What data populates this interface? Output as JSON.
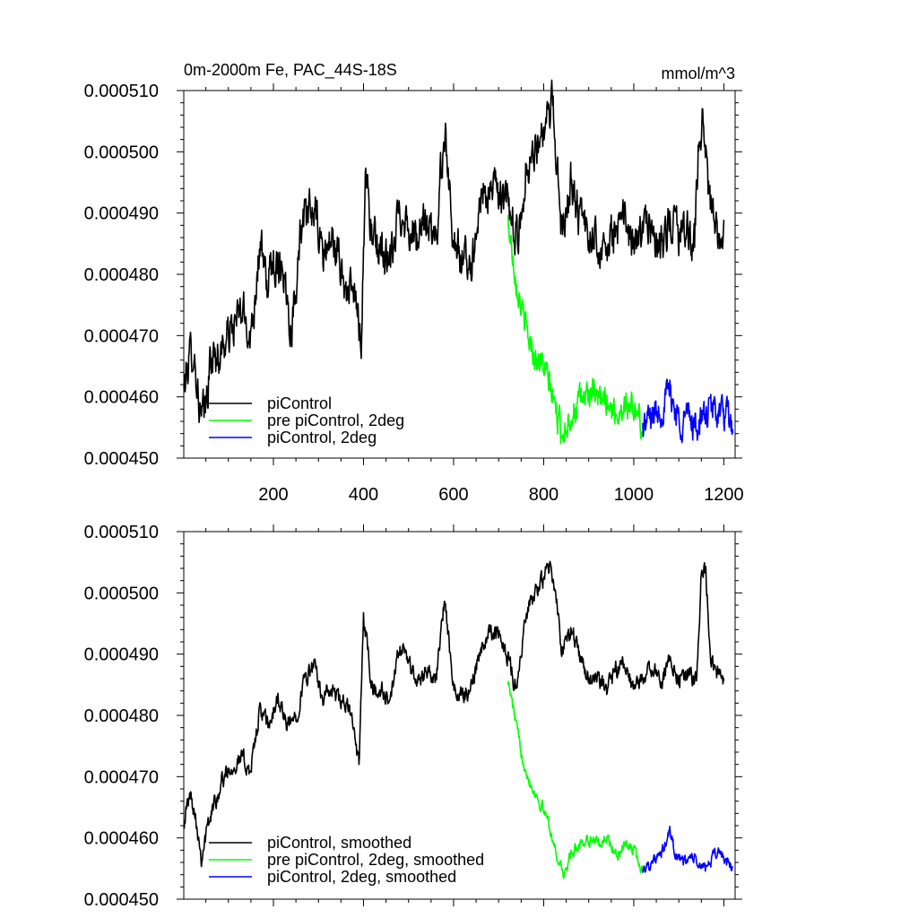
{
  "chart_data": [
    {
      "type": "line",
      "title": "0m-2000m Fe, PAC_44S-18S",
      "units": "mmol/m^3",
      "xlim": [
        1,
        1225
      ],
      "ylim": [
        0.00045,
        0.00051
      ],
      "x_ticks": [
        200,
        400,
        600,
        800,
        1000,
        1200
      ],
      "x_tick_labels": [
        "200",
        "400",
        "600",
        "800",
        "1000",
        "1200"
      ],
      "y_ticks": [
        0.00045,
        0.00046,
        0.00047,
        0.00048,
        0.00049,
        0.0005,
        0.00051
      ],
      "y_tick_labels": [
        "0.000450",
        "0.000460",
        "0.000470",
        "0.000480",
        "0.000490",
        "0.000500",
        "0.000510"
      ],
      "legend": [
        "piControl",
        "pre piControl, 2deg",
        "piControl, 2deg"
      ],
      "series": [
        {
          "name": "piControl",
          "color": "#000000",
          "x_range": [
            1,
            1200
          ],
          "anchors": [
            [
              1,
              0.000461
            ],
            [
              12,
              0.000466
            ],
            [
              22,
              0.000468
            ],
            [
              32,
              0.000461
            ],
            [
              40,
              0.000456
            ],
            [
              50,
              0.000458
            ],
            [
              60,
              0.000466
            ],
            [
              80,
              0.000467
            ],
            [
              100,
              0.00047
            ],
            [
              130,
              0.000474
            ],
            [
              150,
              0.00047
            ],
            [
              170,
              0.000485
            ],
            [
              185,
              0.000478
            ],
            [
              200,
              0.000482
            ],
            [
              220,
              0.000482
            ],
            [
              240,
              0.000471
            ],
            [
              260,
              0.000487
            ],
            [
              290,
              0.000491
            ],
            [
              310,
              0.000483
            ],
            [
              330,
              0.000486
            ],
            [
              360,
              0.000478
            ],
            [
              380,
              0.000476
            ],
            [
              395,
              0.00047
            ],
            [
              405,
              0.000498
            ],
            [
              420,
              0.000485
            ],
            [
              440,
              0.000484
            ],
            [
              460,
              0.000481
            ],
            [
              480,
              0.000491
            ],
            [
              500,
              0.000488
            ],
            [
              520,
              0.000485
            ],
            [
              540,
              0.000489
            ],
            [
              560,
              0.000485
            ],
            [
              580,
              0.000504
            ],
            [
              600,
              0.000486
            ],
            [
              620,
              0.000482
            ],
            [
              640,
              0.000482
            ],
            [
              660,
              0.000492
            ],
            [
              680,
              0.000494
            ],
            [
              700,
              0.000493
            ],
            [
              720,
              0.000491
            ],
            [
              730,
              0.000488
            ],
            [
              745,
              0.000486
            ],
            [
              760,
              0.000497
            ],
            [
              780,
              0.000501
            ],
            [
              800,
              0.000502
            ],
            [
              820,
              0.000508
            ],
            [
              840,
              0.000487
            ],
            [
              860,
              0.000496
            ],
            [
              880,
              0.000489
            ],
            [
              900,
              0.000486
            ],
            [
              920,
              0.000486
            ],
            [
              940,
              0.000484
            ],
            [
              960,
              0.000487
            ],
            [
              980,
              0.000489
            ],
            [
              1000,
              0.000484
            ],
            [
              1020,
              0.000488
            ],
            [
              1040,
              0.000487
            ],
            [
              1060,
              0.000484
            ],
            [
              1080,
              0.000489
            ],
            [
              1100,
              0.000486
            ],
            [
              1120,
              0.000487
            ],
            [
              1135,
              0.000485
            ],
            [
              1145,
              0.000504
            ],
            [
              1155,
              0.000505
            ],
            [
              1165,
              0.000494
            ],
            [
              1180,
              0.000487
            ],
            [
              1200,
              0.000485
            ]
          ],
          "noise": 2.8e-06
        },
        {
          "name": "pre piControl, 2deg",
          "color": "#00ff00",
          "x_range": [
            720,
            1020
          ],
          "anchors": [
            [
              720,
              0.000489
            ],
            [
              740,
              0.000479
            ],
            [
              760,
              0.000471
            ],
            [
              780,
              0.000467
            ],
            [
              800,
              0.000465
            ],
            [
              820,
              0.00046
            ],
            [
              840,
              0.000454
            ],
            [
              860,
              0.000457
            ],
            [
              880,
              0.000459
            ],
            [
              900,
              0.000461
            ],
            [
              920,
              0.000459
            ],
            [
              940,
              0.00046
            ],
            [
              960,
              0.000457
            ],
            [
              980,
              0.000459
            ],
            [
              1000,
              0.000458
            ],
            [
              1020,
              0.000455
            ]
          ],
          "noise": 2e-06
        },
        {
          "name": "piControl, 2deg",
          "color": "#0000ff",
          "x_range": [
            1020,
            1220
          ],
          "anchors": [
            [
              1020,
              0.000455
            ],
            [
              1040,
              0.000457
            ],
            [
              1060,
              0.000458
            ],
            [
              1080,
              0.000461
            ],
            [
              1100,
              0.000456
            ],
            [
              1120,
              0.000457
            ],
            [
              1140,
              0.000455
            ],
            [
              1160,
              0.000457
            ],
            [
              1180,
              0.000458
            ],
            [
              1200,
              0.000457
            ],
            [
              1220,
              0.000455
            ]
          ],
          "noise": 2.2e-06
        }
      ]
    },
    {
      "type": "line",
      "xlim": [
        1,
        1225
      ],
      "ylim": [
        0.00045,
        0.00051
      ],
      "y_ticks": [
        0.00045,
        0.00046,
        0.00047,
        0.00048,
        0.00049,
        0.0005,
        0.00051
      ],
      "y_tick_labels": [
        "0.000450",
        "0.000460",
        "0.000470",
        "0.000480",
        "0.000490",
        "0.000500",
        "0.000510"
      ],
      "legend": [
        "piControl, smoothed",
        "pre piControl, 2deg, smoothed",
        "piControl, 2deg, smoothed"
      ],
      "series": [
        {
          "name": "piControl, smoothed",
          "color": "#000000",
          "x_range": [
            1,
            1200
          ],
          "anchors": [
            [
              1,
              0.000463
            ],
            [
              15,
              0.000467
            ],
            [
              25,
              0.000465
            ],
            [
              40,
              0.000457
            ],
            [
              55,
              0.000462
            ],
            [
              70,
              0.000466
            ],
            [
              90,
              0.00047
            ],
            [
              110,
              0.000472
            ],
            [
              130,
              0.000473
            ],
            [
              150,
              0.000471
            ],
            [
              170,
              0.000481
            ],
            [
              190,
              0.000478
            ],
            [
              210,
              0.000483
            ],
            [
              230,
              0.000478
            ],
            [
              250,
              0.00048
            ],
            [
              270,
              0.000486
            ],
            [
              290,
              0.000488
            ],
            [
              310,
              0.000483
            ],
            [
              330,
              0.000484
            ],
            [
              350,
              0.000482
            ],
            [
              370,
              0.000481
            ],
            [
              390,
              0.000472
            ],
            [
              400,
              0.000496
            ],
            [
              420,
              0.000484
            ],
            [
              440,
              0.000484
            ],
            [
              460,
              0.000482
            ],
            [
              480,
              0.000491
            ],
            [
              500,
              0.000489
            ],
            [
              520,
              0.000485
            ],
            [
              540,
              0.000488
            ],
            [
              560,
              0.000485
            ],
            [
              580,
              0.000499
            ],
            [
              600,
              0.000484
            ],
            [
              620,
              0.000483
            ],
            [
              640,
              0.000485
            ],
            [
              660,
              0.000491
            ],
            [
              680,
              0.000494
            ],
            [
              700,
              0.000493
            ],
            [
              720,
              0.00049
            ],
            [
              740,
              0.000484
            ],
            [
              760,
              0.000496
            ],
            [
              780,
              0.0005
            ],
            [
              800,
              0.000502
            ],
            [
              815,
              0.000505
            ],
            [
              825,
              0.000501
            ],
            [
              840,
              0.00049
            ],
            [
              860,
              0.000494
            ],
            [
              880,
              0.00049
            ],
            [
              900,
              0.000486
            ],
            [
              920,
              0.000486
            ],
            [
              940,
              0.000484
            ],
            [
              960,
              0.000487
            ],
            [
              980,
              0.000488
            ],
            [
              1000,
              0.000484
            ],
            [
              1020,
              0.000486
            ],
            [
              1040,
              0.000488
            ],
            [
              1060,
              0.000485
            ],
            [
              1080,
              0.00049
            ],
            [
              1100,
              0.000486
            ],
            [
              1120,
              0.000487
            ],
            [
              1140,
              0.000485
            ],
            [
              1150,
              0.000504
            ],
            [
              1160,
              0.000503
            ],
            [
              1170,
              0.00049
            ],
            [
              1185,
              0.000487
            ],
            [
              1200,
              0.000485
            ]
          ],
          "noise": 1.2e-06
        },
        {
          "name": "pre piControl, 2deg, smoothed",
          "color": "#00ff00",
          "x_range": [
            720,
            1020
          ],
          "anchors": [
            [
              720,
              0.000486
            ],
            [
              735,
              0.00048
            ],
            [
              750,
              0.000474
            ],
            [
              770,
              0.000469
            ],
            [
              790,
              0.000466
            ],
            [
              810,
              0.000463
            ],
            [
              825,
              0.000458
            ],
            [
              845,
              0.000454
            ],
            [
              860,
              0.000457
            ],
            [
              880,
              0.000459
            ],
            [
              900,
              0.00046
            ],
            [
              920,
              0.000459
            ],
            [
              940,
              0.00046
            ],
            [
              960,
              0.000457
            ],
            [
              980,
              0.000459
            ],
            [
              1000,
              0.000458
            ],
            [
              1015,
              0.000455
            ]
          ],
          "noise": 8e-07
        },
        {
          "name": "piControl, 2deg, smoothed",
          "color": "#0000ff",
          "x_range": [
            1020,
            1220
          ],
          "anchors": [
            [
              1020,
              0.000455
            ],
            [
              1040,
              0.000456
            ],
            [
              1060,
              0.000457
            ],
            [
              1080,
              0.000461
            ],
            [
              1095,
              0.000457
            ],
            [
              1110,
              0.000456
            ],
            [
              1130,
              0.000457
            ],
            [
              1150,
              0.000455
            ],
            [
              1170,
              0.000456
            ],
            [
              1190,
              0.000458
            ],
            [
              1205,
              0.000456
            ],
            [
              1220,
              0.000455
            ]
          ],
          "noise": 8e-07
        }
      ]
    }
  ]
}
